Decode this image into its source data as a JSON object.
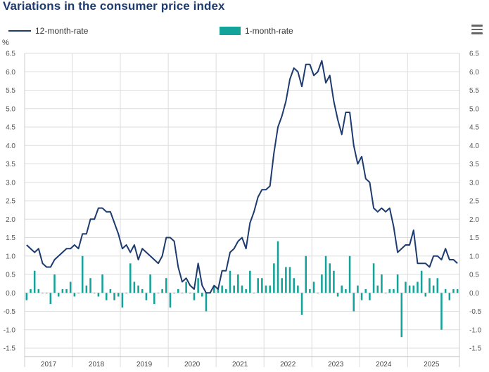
{
  "title": "Variations in the consumer price index",
  "menu_icon": "hamburger-menu-icon",
  "colors": {
    "line": "#1d3b6e",
    "bars": "#14a39a",
    "grid": "#dddddd"
  },
  "chart_data": {
    "type": "bar+line",
    "title": "Variations in the consumer price index",
    "ylabel": "%",
    "ylim": [
      -1.5,
      6.5
    ],
    "yticks": [
      "6.5",
      "6.0",
      "5.5",
      "5.0",
      "4.5",
      "4.0",
      "3.5",
      "3.0",
      "2.5",
      "2.0",
      "1.5",
      "1.0",
      "0.5",
      "0.0",
      "-0.5",
      "-1.0",
      "-1.5"
    ],
    "years": [
      "2017",
      "2018",
      "2019",
      "2020",
      "2021",
      "2022",
      "2023",
      "2024",
      "2025"
    ],
    "legend": [
      "12-month-rate",
      "1-month-rate"
    ],
    "start": "2017-01",
    "series": [
      {
        "name": "12-month-rate",
        "type": "line",
        "values": [
          1.3,
          1.2,
          1.1,
          1.2,
          0.8,
          0.7,
          0.7,
          0.9,
          1.0,
          1.1,
          1.2,
          1.2,
          1.3,
          1.2,
          1.6,
          1.6,
          2.0,
          2.0,
          2.3,
          2.3,
          2.2,
          2.2,
          1.9,
          1.6,
          1.2,
          1.3,
          1.1,
          1.3,
          0.9,
          1.2,
          1.1,
          1.0,
          0.9,
          0.8,
          1.0,
          1.5,
          1.5,
          1.4,
          0.7,
          0.3,
          0.4,
          0.2,
          0.1,
          0.8,
          0.2,
          0.0,
          0.0,
          0.2,
          0.1,
          0.6,
          0.6,
          1.1,
          1.2,
          1.4,
          1.5,
          1.2,
          1.9,
          2.2,
          2.6,
          2.8,
          2.8,
          2.9,
          3.8,
          4.5,
          4.8,
          5.2,
          5.8,
          6.1,
          6.0,
          5.6,
          6.2,
          6.2,
          5.9,
          6.0,
          6.3,
          5.7,
          5.9,
          5.2,
          4.7,
          4.3,
          4.9,
          4.9,
          4.0,
          3.5,
          3.7,
          3.1,
          3.0,
          2.3,
          2.2,
          2.3,
          2.2,
          2.3,
          1.8,
          1.1,
          1.2,
          1.3,
          1.3,
          1.7,
          0.8,
          0.8,
          0.8,
          0.7,
          1.0,
          1.0,
          0.9,
          1.2,
          0.9,
          0.9,
          0.8
        ]
      },
      {
        "name": "1-month-rate",
        "type": "bar",
        "values": [
          -0.2,
          0.1,
          0.6,
          0.1,
          0.0,
          0.0,
          -0.3,
          0.5,
          -0.1,
          0.1,
          0.1,
          0.3,
          -0.1,
          0.0,
          1.0,
          0.2,
          0.4,
          0.0,
          -0.1,
          0.5,
          -0.2,
          0.1,
          -0.2,
          -0.1,
          -0.4,
          0.0,
          0.8,
          0.3,
          0.2,
          0.1,
          -0.2,
          0.5,
          -0.3,
          0.0,
          0.1,
          0.4,
          -0.4,
          0.0,
          0.1,
          0.0,
          0.3,
          0.0,
          -0.2,
          0.4,
          -0.1,
          -0.5,
          0.0,
          0.2,
          0.1,
          0.2,
          0.1,
          0.6,
          0.2,
          0.5,
          0.2,
          0.1,
          0.6,
          0.0,
          0.4,
          0.4,
          0.2,
          0.2,
          0.8,
          1.4,
          0.4,
          0.7,
          0.7,
          0.4,
          0.2,
          -0.6,
          1.0,
          0.1,
          0.3,
          0.0,
          0.5,
          1.0,
          0.8,
          0.6,
          -0.1,
          0.2,
          0.1,
          1.0,
          -0.5,
          0.2,
          -0.2,
          0.1,
          -0.2,
          0.8,
          0.2,
          0.5,
          0.0,
          0.1,
          0.1,
          0.5,
          -1.2,
          0.3,
          0.2,
          0.2,
          0.3,
          0.6,
          -0.1,
          0.4,
          0.2,
          0.4,
          -1.0,
          0.1,
          -0.2,
          0.1,
          0.1
        ]
      }
    ]
  }
}
